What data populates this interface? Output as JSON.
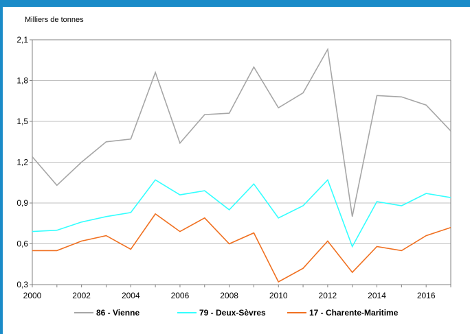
{
  "colors": {
    "frame": "#1a8bc8",
    "grid": "#bfbfbf",
    "axis": "#808080"
  },
  "chart_data": {
    "type": "line",
    "unit_label": "Milliers de tonnes",
    "x": [
      2000,
      2001,
      2002,
      2003,
      2004,
      2005,
      2006,
      2007,
      2008,
      2009,
      2010,
      2011,
      2012,
      2013,
      2014,
      2015,
      2016,
      2017
    ],
    "xlim": [
      2000,
      2017
    ],
    "ylim": [
      0.3,
      2.1
    ],
    "x_ticks": [
      "2000",
      "2002",
      "2004",
      "2006",
      "2008",
      "2010",
      "2012",
      "2014",
      "2016"
    ],
    "y_ticks": [
      "0,3",
      "0,6",
      "0,9",
      "1,2",
      "1,5",
      "1,8",
      "2,1"
    ],
    "grid": "horizontal",
    "legend_position": "bottom",
    "series": [
      {
        "name": "86 - Vienne",
        "color": "#a6a6a6",
        "values": [
          1.24,
          1.03,
          1.2,
          1.35,
          1.37,
          1.86,
          1.34,
          1.55,
          1.56,
          1.9,
          1.6,
          1.71,
          2.03,
          0.8,
          1.69,
          1.68,
          1.62,
          1.43
        ]
      },
      {
        "name": "79 - Deux-Sèvres",
        "color": "#33ffff",
        "values": [
          0.69,
          0.7,
          0.76,
          0.8,
          0.83,
          1.07,
          0.96,
          0.99,
          0.85,
          1.04,
          0.79,
          0.88,
          1.07,
          0.58,
          0.91,
          0.88,
          0.97,
          0.94
        ]
      },
      {
        "name": "17 - Charente-Maritime",
        "color": "#f07020",
        "values": [
          0.55,
          0.55,
          0.62,
          0.66,
          0.56,
          0.82,
          0.69,
          0.79,
          0.6,
          0.68,
          0.32,
          0.42,
          0.62,
          0.39,
          0.58,
          0.55,
          0.66,
          0.72
        ]
      }
    ]
  }
}
